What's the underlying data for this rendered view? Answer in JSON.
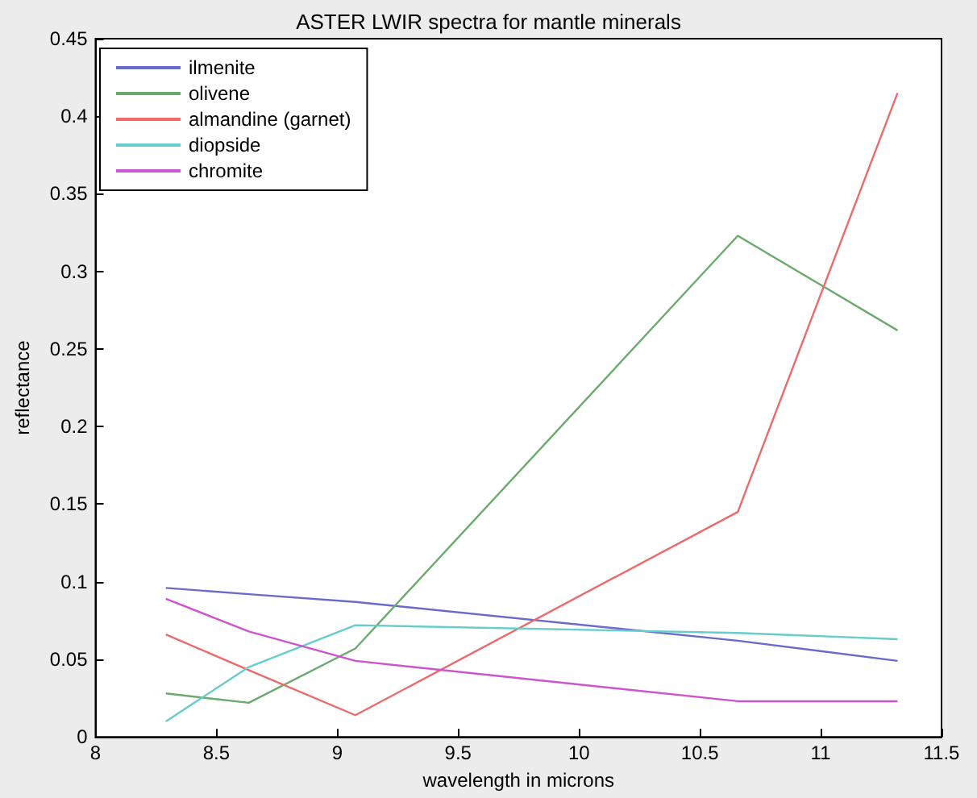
{
  "chart_data": {
    "type": "line",
    "title": "ASTER LWIR spectra for mantle minerals",
    "xlabel": "wavelength in microns",
    "ylabel": "reflectance",
    "x": [
      8.291,
      8.634,
      9.075,
      10.657,
      11.318
    ],
    "series": [
      {
        "name": "ilmenite",
        "color": "#6a6acc",
        "values": [
          0.096,
          0.092,
          0.087,
          0.062,
          0.049
        ]
      },
      {
        "name": "olivene",
        "color": "#6aaa6a",
        "values": [
          0.028,
          0.022,
          0.057,
          0.323,
          0.262
        ]
      },
      {
        "name": "almandine (garnet)",
        "color": "#ee6a6a",
        "values": [
          0.066,
          0.043,
          0.014,
          0.145,
          0.415
        ]
      },
      {
        "name": "diopside",
        "color": "#66cccc",
        "values": [
          0.01,
          0.045,
          0.072,
          0.067,
          0.063
        ]
      },
      {
        "name": "chromite",
        "color": "#cc55cc",
        "values": [
          0.089,
          0.068,
          0.049,
          0.023,
          0.023
        ]
      }
    ],
    "xlim": [
      8,
      11.5
    ],
    "xticks": [
      8,
      8.5,
      9,
      9.5,
      10,
      10.5,
      11,
      11.5
    ],
    "ylim": [
      0,
      0.45
    ],
    "yticks": [
      0,
      0.05,
      0.1,
      0.15,
      0.2,
      0.25,
      0.3,
      0.35,
      0.4,
      0.45
    ],
    "grid": false,
    "legend": "top left",
    "marker": "none",
    "line_style": "solid"
  }
}
